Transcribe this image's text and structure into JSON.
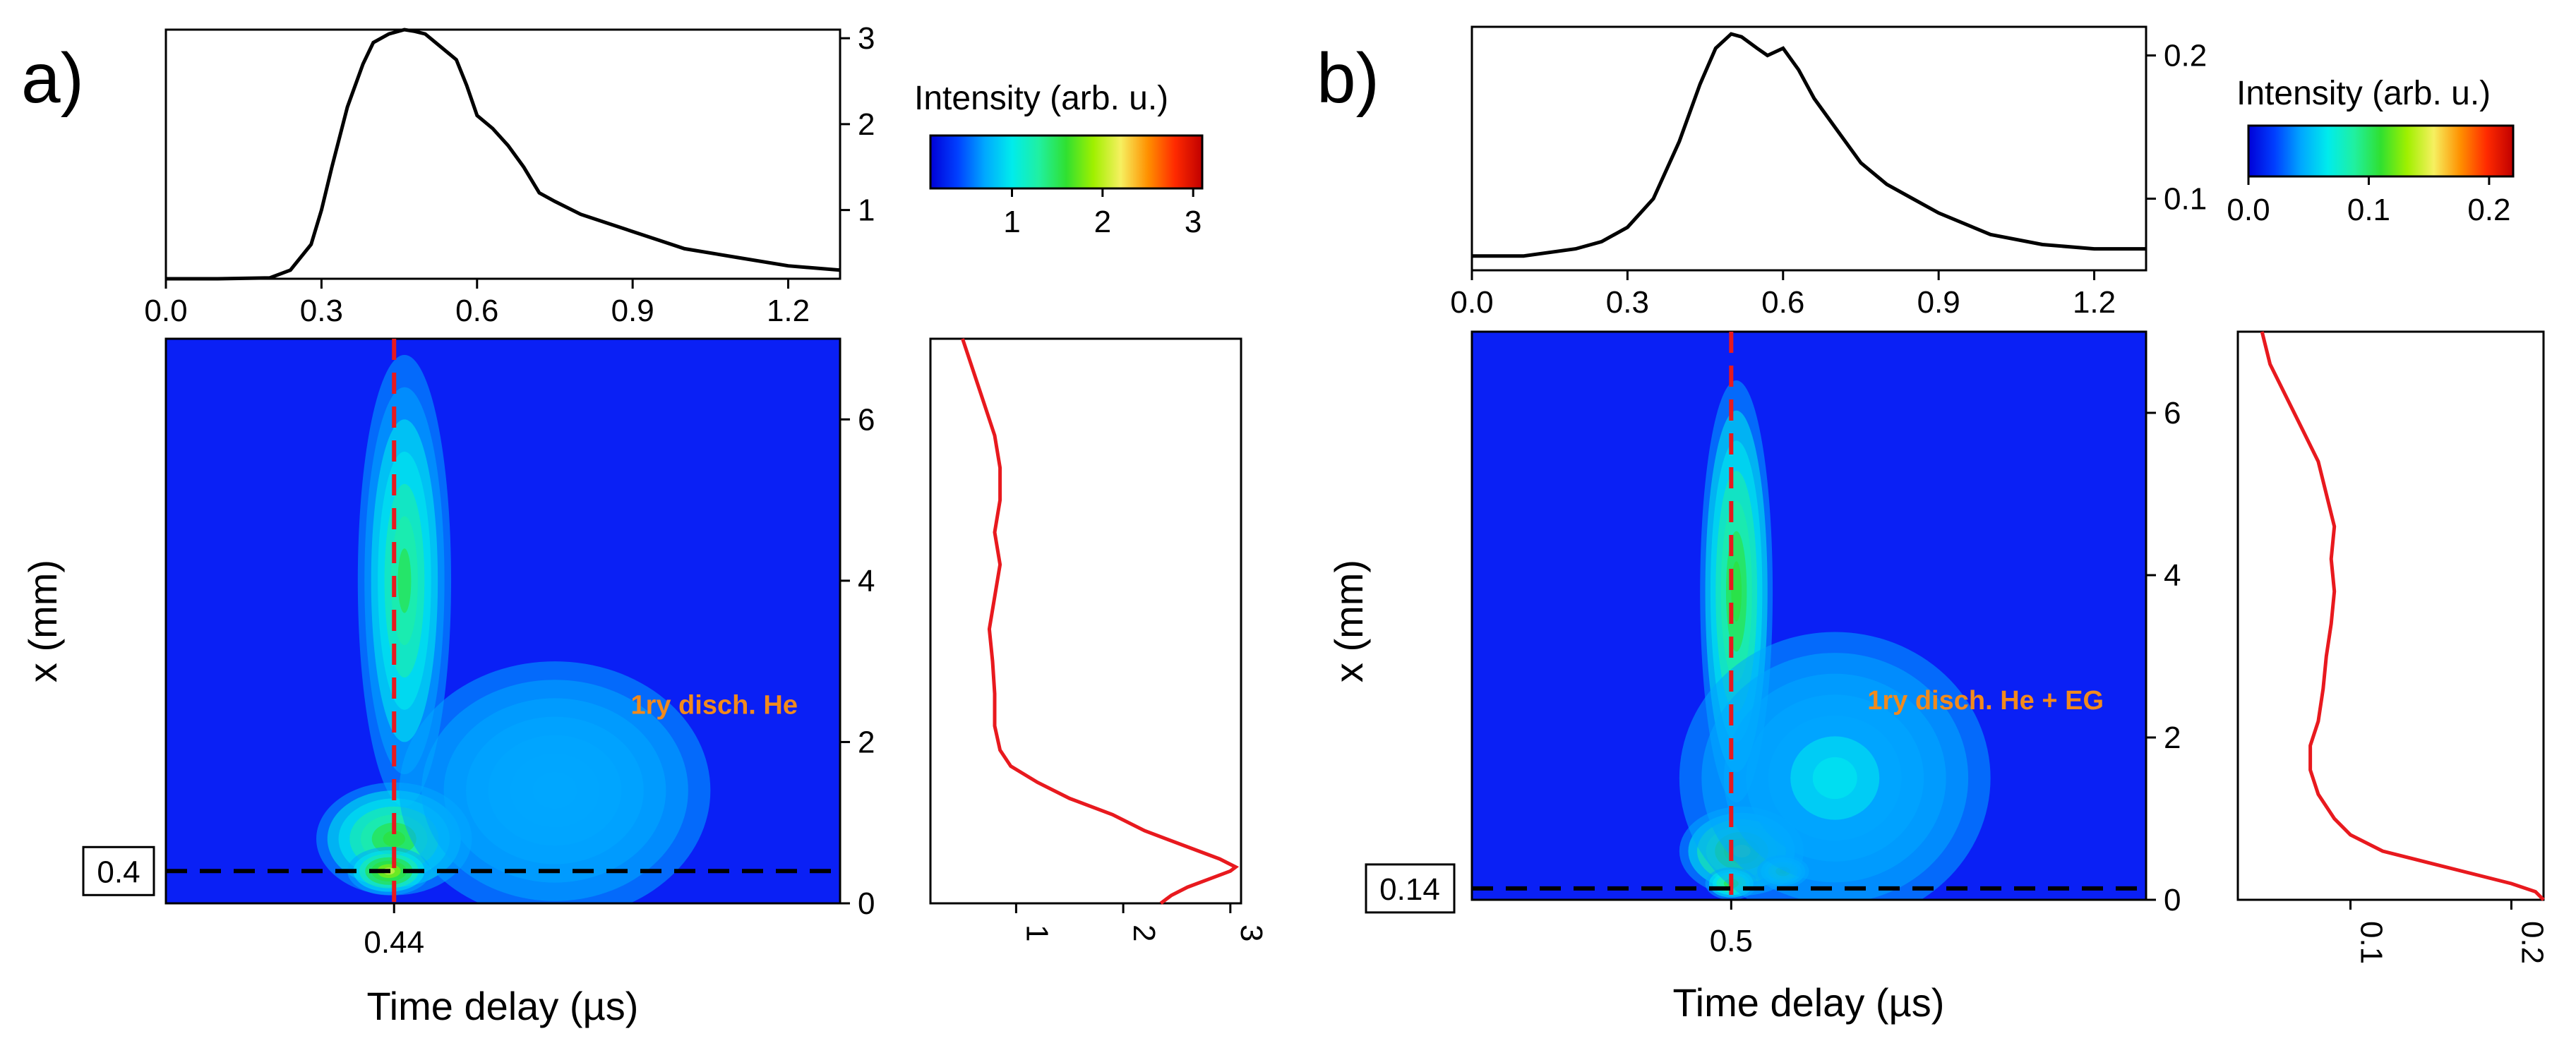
{
  "colors": {
    "top_profile": "#000000",
    "side_profile": "#e8191e",
    "vertical_marker": "#e8191e",
    "horizontal_marker": "#000000",
    "annotation": "#f28a1c",
    "map_background": "#0a20f5"
  },
  "colormap": [
    "#0000d8",
    "#0040ff",
    "#00a8ff",
    "#00ecec",
    "#20f0a0",
    "#30e030",
    "#a0f000",
    "#f6f060",
    "#ff9000",
    "#ff2a00",
    "#c00000"
  ],
  "chart_data": [
    {
      "type": "heatmap",
      "panel_label": "a)",
      "xlabel": "Time delay (µs)",
      "ylabel": "x (mm)",
      "annotation": "1ry disch. He",
      "xlim": [
        0,
        1.3
      ],
      "ylim": [
        0,
        7
      ],
      "yticks": [
        "0",
        "2",
        "4",
        "6"
      ],
      "x_marker": {
        "value": 0.44,
        "label": "0.44"
      },
      "y_marker": {
        "value": 0.4,
        "label": "0.4"
      },
      "colorbar": {
        "title": "Intensity (arb. u.)",
        "range": [
          0.1,
          3.1
        ],
        "ticks": [
          "1",
          "2",
          "3"
        ]
      },
      "top_profile": {
        "xlim": [
          0,
          1.3
        ],
        "ylim": [
          0.2,
          3.1
        ],
        "xticks": [
          "0.0",
          "0.3",
          "0.6",
          "0.9",
          "1.2"
        ],
        "yticks": [
          "1",
          "2",
          "3"
        ],
        "x": [
          0,
          0.1,
          0.2,
          0.24,
          0.28,
          0.3,
          0.32,
          0.35,
          0.38,
          0.4,
          0.43,
          0.46,
          0.48,
          0.5,
          0.53,
          0.56,
          0.58,
          0.6,
          0.63,
          0.66,
          0.69,
          0.72,
          0.75,
          0.8,
          0.85,
          0.9,
          0.95,
          1.0,
          1.1,
          1.2,
          1.3
        ],
        "y": [
          0.2,
          0.2,
          0.21,
          0.3,
          0.6,
          1.0,
          1.5,
          2.2,
          2.7,
          2.95,
          3.05,
          3.1,
          3.08,
          3.05,
          2.9,
          2.75,
          2.45,
          2.1,
          1.95,
          1.75,
          1.5,
          1.2,
          1.1,
          0.95,
          0.85,
          0.75,
          0.65,
          0.55,
          0.45,
          0.35,
          0.3
        ]
      },
      "side_profile": {
        "xlim": [
          0.2,
          3.1
        ],
        "ylim": [
          0,
          7
        ],
        "xticks": [
          "1",
          "2",
          "3"
        ],
        "y": [
          7,
          6.6,
          6.2,
          5.8,
          5.4,
          5.0,
          4.6,
          4.2,
          3.8,
          3.4,
          3.0,
          2.6,
          2.2,
          1.9,
          1.7,
          1.5,
          1.3,
          1.1,
          0.9,
          0.7,
          0.55,
          0.45,
          0.4,
          0.3,
          0.2,
          0.1,
          0.0
        ],
        "x": [
          0.5,
          0.6,
          0.7,
          0.8,
          0.85,
          0.85,
          0.8,
          0.85,
          0.8,
          0.75,
          0.78,
          0.8,
          0.8,
          0.85,
          0.95,
          1.2,
          1.5,
          1.9,
          2.2,
          2.6,
          2.9,
          3.05,
          3.0,
          2.8,
          2.6,
          2.45,
          2.35
        ]
      },
      "blobs": [
        {
          "x": 0.46,
          "y": 4.0,
          "sx": 0.09,
          "sy": 2.8,
          "a": 1.0
        },
        {
          "x": 0.44,
          "y": 0.8,
          "sx": 0.15,
          "sy": 0.7,
          "a": 1.15
        },
        {
          "x": 0.43,
          "y": 0.4,
          "sx": 0.08,
          "sy": 0.3,
          "a": 1.6
        },
        {
          "x": 0.75,
          "y": 1.4,
          "sx": 0.3,
          "sy": 1.6,
          "a": 0.3
        }
      ]
    },
    {
      "type": "heatmap",
      "panel_label": "b)",
      "xlabel": "Time delay (µs)",
      "ylabel": "x (mm)",
      "annotation": "1ry disch. He + EG",
      "xlim": [
        0,
        1.3
      ],
      "ylim": [
        0,
        7
      ],
      "yticks": [
        "0",
        "2",
        "4",
        "6"
      ],
      "x_marker": {
        "value": 0.5,
        "label": "0.5"
      },
      "y_marker": {
        "value": 0.14,
        "label": "0.14"
      },
      "colorbar": {
        "title": "Intensity (arb. u.)",
        "range": [
          0.0,
          0.22
        ],
        "ticks": [
          "0.0",
          "0.1",
          "0.2"
        ]
      },
      "top_profile": {
        "xlim": [
          0,
          1.3
        ],
        "ylim": [
          0.05,
          0.22
        ],
        "xticks": [
          "0.0",
          "0.3",
          "0.6",
          "0.9",
          "1.2"
        ],
        "yticks": [
          "0.1",
          "0.2"
        ],
        "x": [
          0,
          0.1,
          0.2,
          0.25,
          0.3,
          0.35,
          0.4,
          0.44,
          0.47,
          0.5,
          0.52,
          0.55,
          0.57,
          0.6,
          0.63,
          0.66,
          0.7,
          0.75,
          0.8,
          0.85,
          0.9,
          1.0,
          1.1,
          1.2,
          1.3
        ],
        "y": [
          0.06,
          0.06,
          0.065,
          0.07,
          0.08,
          0.1,
          0.14,
          0.18,
          0.205,
          0.215,
          0.213,
          0.205,
          0.2,
          0.205,
          0.19,
          0.17,
          0.15,
          0.125,
          0.11,
          0.1,
          0.09,
          0.075,
          0.068,
          0.065,
          0.065
        ]
      },
      "side_profile": {
        "xlim": [
          0.03,
          0.22
        ],
        "ylim": [
          0,
          7
        ],
        "xticks": [
          "0.1",
          "0.2"
        ],
        "y": [
          7,
          6.6,
          6.2,
          5.8,
          5.4,
          5.0,
          4.6,
          4.2,
          3.8,
          3.4,
          3.0,
          2.6,
          2.2,
          1.9,
          1.6,
          1.3,
          1.0,
          0.8,
          0.6,
          0.45,
          0.3,
          0.2,
          0.1,
          0.0
        ],
        "x": [
          0.045,
          0.05,
          0.06,
          0.07,
          0.08,
          0.085,
          0.09,
          0.088,
          0.09,
          0.088,
          0.085,
          0.083,
          0.08,
          0.075,
          0.075,
          0.08,
          0.09,
          0.1,
          0.12,
          0.15,
          0.18,
          0.2,
          0.215,
          0.22
        ]
      },
      "blobs": [
        {
          "x": 0.51,
          "y": 3.8,
          "sx": 0.07,
          "sy": 2.6,
          "a": 0.075
        },
        {
          "x": 0.52,
          "y": 0.6,
          "sx": 0.12,
          "sy": 0.55,
          "a": 0.09
        },
        {
          "x": 0.6,
          "y": 0.35,
          "sx": 0.05,
          "sy": 0.2,
          "a": 0.08
        },
        {
          "x": 0.5,
          "y": 0.2,
          "sx": 0.05,
          "sy": 0.2,
          "a": 0.07
        },
        {
          "x": 0.7,
          "y": 1.5,
          "sx": 0.3,
          "sy": 1.8,
          "a": 0.02
        }
      ]
    }
  ]
}
